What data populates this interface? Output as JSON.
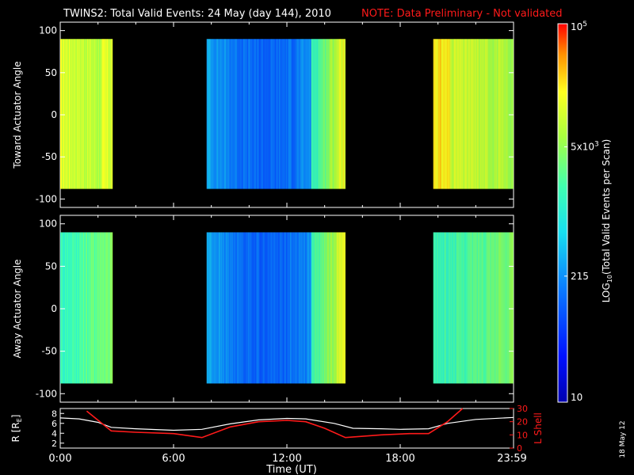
{
  "title": {
    "main": "TWINS2: Total Valid Events: 24 May (day 144), 2010",
    "note": "NOTE: Data Preliminary - Not validated"
  },
  "date_stamp": "18 May 12",
  "colors": {
    "background": "#000000",
    "foreground": "#ffffff",
    "note": "#ff1a1a",
    "lshell_line": "#ff1a1a",
    "radius_line": "#ffffff"
  },
  "chart_data": [
    {
      "type": "heatmap",
      "panel": "toward",
      "ylabel": "Toward Actuator Angle",
      "ylim": [
        -110,
        110
      ],
      "yticks": [
        "100",
        "50",
        "0",
        "-50",
        "-100"
      ],
      "xlim_hours": [
        0,
        24
      ],
      "angle_range": [
        -88,
        90
      ],
      "data_intervals_hours": [
        {
          "start": 0.0,
          "end": 2.75,
          "level": "high"
        },
        {
          "start": 7.75,
          "end": 15.1,
          "level": "low"
        },
        {
          "start": 19.75,
          "end": 24.0,
          "level": "high"
        }
      ]
    },
    {
      "type": "heatmap",
      "panel": "away",
      "ylabel": "Away Actuator Angle",
      "ylim": [
        -110,
        110
      ],
      "yticks": [
        "100",
        "50",
        "0",
        "-50",
        "-100"
      ],
      "xlim_hours": [
        0,
        24
      ],
      "angle_range": [
        -88,
        90
      ],
      "data_intervals_hours": [
        {
          "start": 0.0,
          "end": 2.75,
          "level": "medium"
        },
        {
          "start": 7.75,
          "end": 15.1,
          "level": "low"
        },
        {
          "start": 19.75,
          "end": 24.0,
          "level": "medium"
        }
      ]
    },
    {
      "type": "line",
      "panel": "orbit",
      "xlabel": "Time (UT)",
      "xticks": [
        "0:00",
        "6:00",
        "12:00",
        "18:00",
        "23:59"
      ],
      "ylabel_left_main": "R [R",
      "ylabel_left_sub": "E",
      "ylabel_left_end": "]",
      "ylabel_right": "L Shell",
      "ylim_left": [
        1,
        9
      ],
      "yticks_left": [
        "8",
        "6",
        "4",
        "2"
      ],
      "ylim_right": [
        0,
        30
      ],
      "yticks_right": [
        "30",
        "20",
        "10",
        "0"
      ],
      "series": [
        {
          "axis": "left",
          "x": [
            0,
            1,
            2,
            2.7,
            4,
            6,
            7.5,
            9,
            10.5,
            12,
            13,
            14.5,
            15.5,
            17,
            18,
            19.5,
            20.5,
            22,
            24
          ],
          "y": [
            7.1,
            6.9,
            6.2,
            5.2,
            4.9,
            4.6,
            4.8,
            5.9,
            6.7,
            7.0,
            6.9,
            6.0,
            5.0,
            4.9,
            4.8,
            4.9,
            6.0,
            6.8,
            7.2
          ]
        },
        {
          "axis": "right",
          "x": [
            1.4,
            2.7,
            4,
            6,
            7.5,
            9,
            10.5,
            12,
            13,
            14,
            15.1,
            17,
            18.5,
            19.5,
            20.5,
            21.3
          ],
          "y": [
            28,
            13,
            12,
            11,
            8,
            16,
            20,
            21,
            20,
            15,
            8,
            10,
            11,
            11,
            20,
            30
          ]
        }
      ]
    }
  ],
  "colorbar": {
    "label_pre": "LOG",
    "label_sub": "10",
    "label_post": "(Total Valid Events per Scan)",
    "min": 10,
    "max": 100000,
    "ticks": [
      {
        "value": 100000,
        "mantissa": "10",
        "exponent": "5"
      },
      {
        "value": 5000,
        "mantissa": "5x10",
        "exponent": "3"
      },
      {
        "value": 215,
        "mantissa": "215",
        "exponent": ""
      },
      {
        "value": 10,
        "mantissa": "10",
        "exponent": ""
      }
    ]
  }
}
